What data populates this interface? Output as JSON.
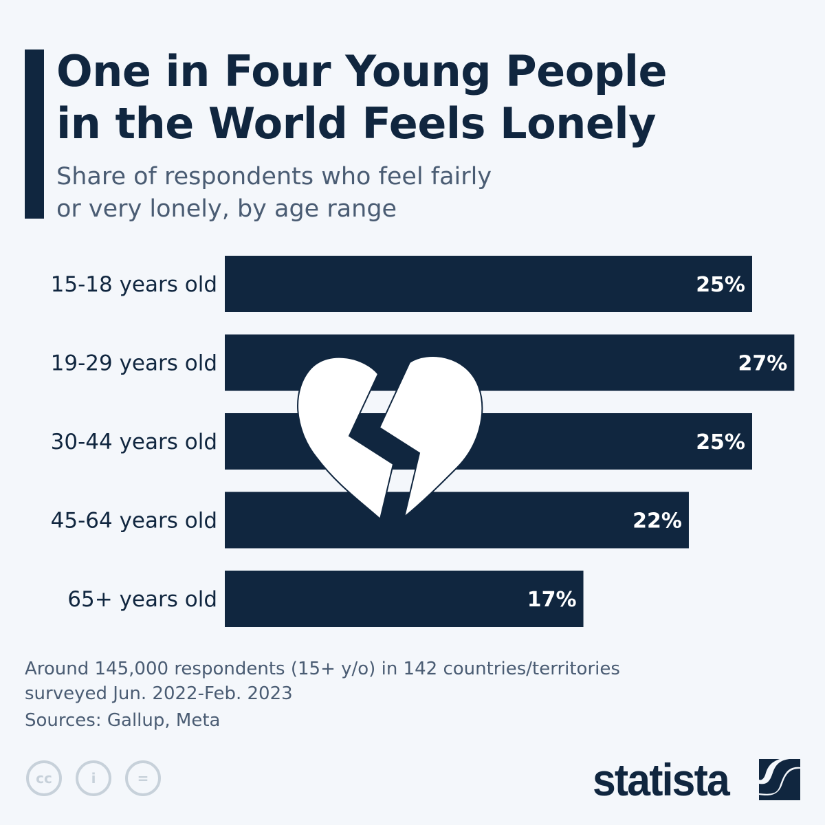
{
  "chart_data": {
    "type": "bar",
    "orientation": "horizontal",
    "title": "One in Four Young People in the World Feels Lonely",
    "subtitle": "Share of respondents who feel fairly or very lonely, by age range",
    "categories": [
      "15-18 years old",
      "19-29 years old",
      "30-44 years old",
      "45-64 years old",
      "65+ years old"
    ],
    "values": [
      25,
      27,
      25,
      22,
      17
    ],
    "labels": [
      "25%",
      "27%",
      "25%",
      "22%",
      "17%"
    ],
    "unit": "%",
    "xlim": [
      0,
      27
    ],
    "grid": false,
    "bar_color": "#10263f"
  },
  "title_lines": [
    "One in Four Young People",
    "in the World Feels Lonely"
  ],
  "subtitle_lines": [
    "Share of respondents who feel fairly",
    "or very lonely, by age range"
  ],
  "note_lines": [
    "Around 145,000 respondents (15+ y/o) in 142 countries/territories",
    "surveyed Jun. 2022-Feb. 2023"
  ],
  "sources": "Sources: Gallup, Meta",
  "license_icons": [
    "cc-icon",
    "attribution-icon",
    "no-derivatives-icon"
  ],
  "license_glyphs": [
    "cc",
    "i",
    "="
  ],
  "brand": "statista",
  "colors": {
    "primary": "#10263f",
    "background": "#f4f7fb",
    "muted": "#4a5c73",
    "license": "#c7d1da"
  }
}
